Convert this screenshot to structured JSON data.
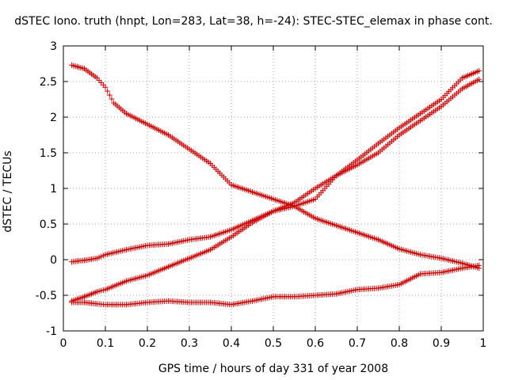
{
  "chart_data": {
    "type": "scatter",
    "title": "dSTEC Iono. truth (hnpt, Lon=283, Lat=38, h=-24): STEC-STEC_elemax in phase cont.",
    "xlabel": "GPS time / hours of day 331 of year 2008",
    "ylabel": "dSTEC  / TECUs",
    "xlim": [
      0,
      1
    ],
    "ylim": [
      -1,
      3
    ],
    "x_ticks": [
      "0",
      "0.1",
      "0.2",
      "0.3",
      "0.4",
      "0.5",
      "0.6",
      "0.7",
      "0.8",
      "0.9",
      "1"
    ],
    "y_ticks": [
      "-1",
      "-0.5",
      "0",
      "0.5",
      "1",
      "1.5",
      "2",
      "2.5",
      "3"
    ],
    "grid": true,
    "marker": "+",
    "color": "#cc0000",
    "series": [
      {
        "x": [
          0.02,
          0.05,
          0.08,
          0.1,
          0.12,
          0.15,
          0.2,
          0.25,
          0.3,
          0.35,
          0.4,
          0.45,
          0.5,
          0.55,
          0.6,
          0.65,
          0.7,
          0.75,
          0.8,
          0.85,
          0.9,
          0.95,
          0.99
        ],
        "y": [
          2.73,
          2.68,
          2.55,
          2.42,
          2.2,
          2.05,
          1.9,
          1.75,
          1.55,
          1.35,
          1.05,
          0.95,
          0.85,
          0.75,
          0.58,
          0.48,
          0.38,
          0.28,
          0.15,
          0.07,
          0.02,
          -0.05,
          -0.12
        ]
      },
      {
        "x": [
          0.02,
          0.05,
          0.08,
          0.1,
          0.15,
          0.2,
          0.25,
          0.3,
          0.35,
          0.4,
          0.45,
          0.5,
          0.55,
          0.6,
          0.65,
          0.7,
          0.75,
          0.8,
          0.85,
          0.9,
          0.95,
          0.99
        ],
        "y": [
          -0.03,
          -0.01,
          0.02,
          0.07,
          0.14,
          0.2,
          0.22,
          0.28,
          0.32,
          0.42,
          0.55,
          0.68,
          0.8,
          1.0,
          1.18,
          1.33,
          1.5,
          1.75,
          1.95,
          2.15,
          2.4,
          2.53
        ]
      },
      {
        "x": [
          0.02,
          0.05,
          0.08,
          0.1,
          0.15,
          0.2,
          0.25,
          0.3,
          0.35,
          0.4,
          0.45,
          0.5,
          0.55,
          0.6,
          0.65,
          0.7,
          0.75,
          0.8,
          0.85,
          0.9,
          0.95,
          0.99
        ],
        "y": [
          -0.58,
          -0.52,
          -0.45,
          -0.42,
          -0.3,
          -0.22,
          -0.1,
          0.02,
          0.14,
          0.32,
          0.52,
          0.68,
          0.75,
          0.85,
          1.18,
          1.4,
          1.63,
          1.85,
          2.05,
          2.25,
          2.55,
          2.65
        ]
      },
      {
        "x": [
          0.02,
          0.05,
          0.08,
          0.1,
          0.15,
          0.2,
          0.25,
          0.3,
          0.35,
          0.4,
          0.45,
          0.5,
          0.55,
          0.6,
          0.65,
          0.7,
          0.75,
          0.8,
          0.85,
          0.9,
          0.95,
          0.99
        ],
        "y": [
          -0.6,
          -0.6,
          -0.62,
          -0.63,
          -0.63,
          -0.6,
          -0.58,
          -0.6,
          -0.6,
          -0.63,
          -0.58,
          -0.52,
          -0.52,
          -0.5,
          -0.48,
          -0.42,
          -0.4,
          -0.35,
          -0.2,
          -0.18,
          -0.12,
          -0.08
        ]
      }
    ]
  }
}
